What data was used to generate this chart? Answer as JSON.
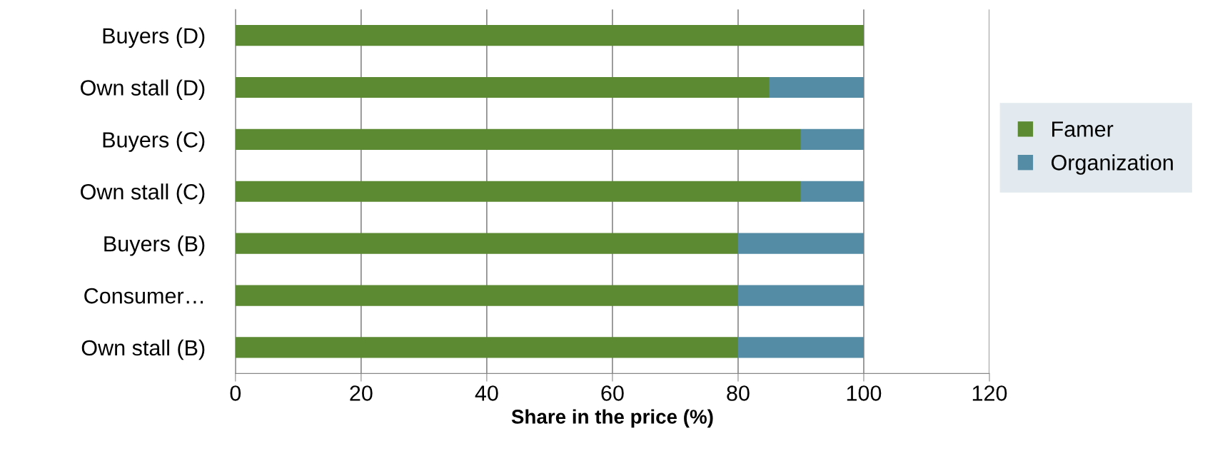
{
  "chart_data": {
    "type": "bar",
    "orientation": "horizontal",
    "stacked": true,
    "xlabel": "Share in the price (%)",
    "categories": [
      "Buyers (D)",
      "Own stall (D)",
      "Buyers (C)",
      "Own stall (C)",
      "Buyers (B)",
      "Consumer…",
      "Own stall (B)"
    ],
    "series": [
      {
        "name": "Famer",
        "color": "#5b8a33",
        "values": [
          100,
          85,
          90,
          90,
          80,
          80,
          80
        ]
      },
      {
        "name": "Organization",
        "color": "#548ca6",
        "values": [
          0,
          15,
          10,
          10,
          20,
          20,
          20
        ]
      }
    ],
    "xlim": [
      0,
      120
    ],
    "xticks": [
      0,
      20,
      40,
      60,
      80,
      100,
      120
    ],
    "grid": "x",
    "legend": "right"
  }
}
